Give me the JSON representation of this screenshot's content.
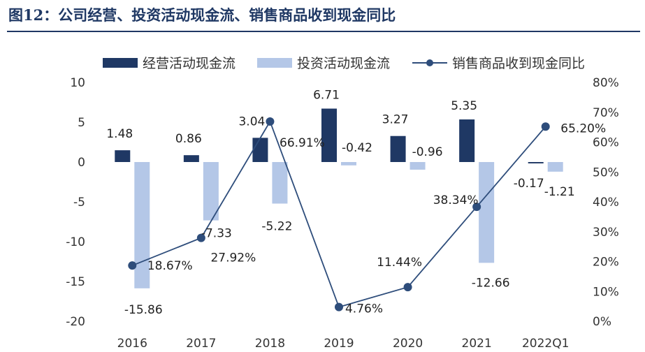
{
  "figure_title": "图12：公司经营、投资活动现金流、销售商品收到现金同比",
  "colors": {
    "operating": "#1f3864",
    "investing": "#b4c7e7",
    "line": "#2e4d7b",
    "title": "#1f3864"
  },
  "chart_data": {
    "type": "bar",
    "title": "",
    "categories": [
      "2016",
      "2017",
      "2018",
      "2019",
      "2020",
      "2021",
      "2022Q1"
    ],
    "y_left_ticks": [
      "10",
      "5",
      "0",
      "-5",
      "-10",
      "-15",
      "-20"
    ],
    "y_right_ticks": [
      "80%",
      "70%",
      "60%",
      "50%",
      "40%",
      "30%",
      "20%",
      "10%",
      "0%"
    ],
    "ylim_left": [
      -20,
      10
    ],
    "ylim_right": [
      0,
      80
    ],
    "legend_position": "top",
    "series": [
      {
        "name": "经营活动现金流",
        "kind": "bar",
        "axis": "left",
        "values": [
          1.48,
          0.86,
          3.04,
          6.71,
          3.27,
          5.35,
          -0.17
        ],
        "labels": [
          "1.48",
          "0.86",
          "3.04",
          "6.71",
          "3.27",
          "5.35",
          "-0.17"
        ]
      },
      {
        "name": "投资活动现金流",
        "kind": "bar",
        "axis": "left",
        "values": [
          -15.86,
          -7.33,
          -5.22,
          -0.42,
          -0.96,
          -12.66,
          -1.21
        ],
        "labels": [
          "-15.86",
          "-7.33",
          "-5.22",
          "-0.42",
          "-0.96",
          "-12.66",
          "-1.21"
        ]
      },
      {
        "name": "销售商品收到现金同比",
        "kind": "line",
        "axis": "right",
        "values": [
          18.67,
          27.92,
          66.91,
          4.76,
          11.44,
          38.34,
          65.2
        ],
        "labels": [
          "18.67%",
          "27.92%",
          "66.91%",
          "4.76%",
          "11.44%",
          "38.34%",
          "65.20%"
        ]
      }
    ]
  }
}
